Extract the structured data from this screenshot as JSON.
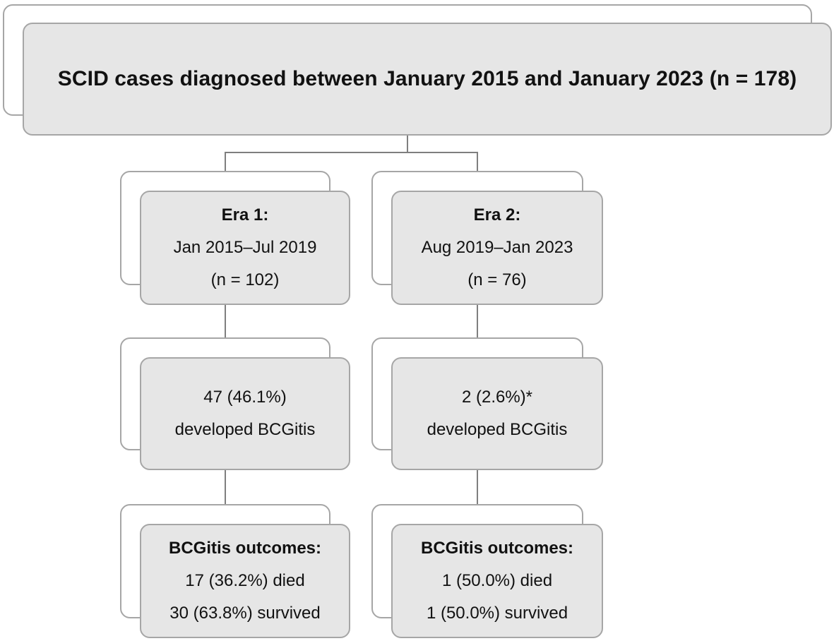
{
  "root": {
    "title": "SCID cases diagnosed between January 2015 and January 2023 (n = 178)"
  },
  "era1": {
    "heading": "Era 1:",
    "dates": "Jan 2015–Jul 2019",
    "n": "(n = 102)",
    "bcgitis_count": "47 (46.1%)",
    "bcgitis_label": "developed BCGitis",
    "outcomes_heading": "BCGitis outcomes:",
    "died": "17 (36.2%) died",
    "survived": "30 (63.8%) survived"
  },
  "era2": {
    "heading": "Era 2:",
    "dates": "Aug 2019–Jan 2023",
    "n": "(n = 76)",
    "bcgitis_count": "2 (2.6%)*",
    "bcgitis_label": "developed BCGitis",
    "outcomes_heading": "BCGitis outcomes:",
    "died": "1 (50.0%) died",
    "survived": "1 (50.0%) survived"
  },
  "colors": {
    "box_fill": "#e6e6e6",
    "box_border": "#a6a6a6",
    "connector": "#7f7f7f"
  }
}
